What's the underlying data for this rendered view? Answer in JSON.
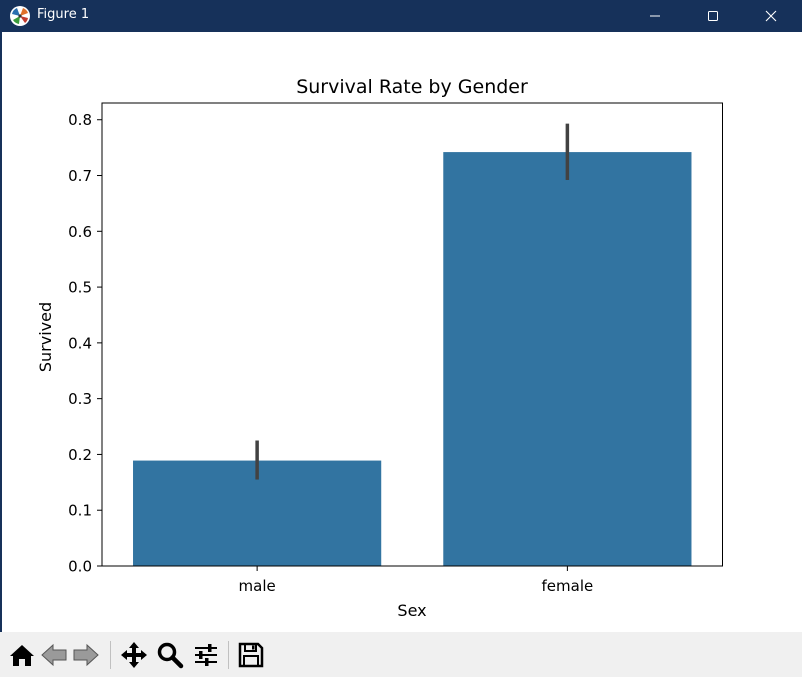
{
  "window": {
    "title": "Figure 1",
    "icon": "matplotlib-logo-icon",
    "controls": [
      "minimize-icon",
      "maximize-icon",
      "close-icon"
    ]
  },
  "chart_data": {
    "type": "bar",
    "title": "Survival Rate by Gender",
    "xlabel": "Sex",
    "ylabel": "Survived",
    "categories": [
      "male",
      "female"
    ],
    "values": [
      0.189,
      0.742
    ],
    "error_low": [
      0.155,
      0.692
    ],
    "error_high": [
      0.225,
      0.793
    ],
    "ylim": [
      0,
      0.83
    ],
    "yticks": [
      "0.0",
      "0.1",
      "0.2",
      "0.3",
      "0.4",
      "0.5",
      "0.6",
      "0.7",
      "0.8"
    ],
    "ytick_values": [
      0,
      0.1,
      0.2,
      0.3,
      0.4,
      0.5,
      0.6,
      0.7,
      0.8
    ],
    "bar_color": "#3274a1",
    "error_color": "#424242",
    "grid": false,
    "legend": "none"
  },
  "toolbar": {
    "tools": [
      "home-icon",
      "back-arrow-icon",
      "forward-arrow-icon",
      "pan-move-icon",
      "zoom-magnifier-icon",
      "configure-subplots-icon",
      "save-floppy-icon"
    ]
  }
}
